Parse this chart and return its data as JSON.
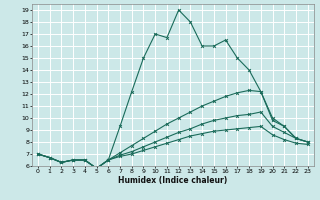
{
  "xlabel": "Humidex (Indice chaleur)",
  "bg_color": "#cce8e8",
  "grid_color": "#ffffff",
  "line_color": "#1a6b5a",
  "xlim": [
    -0.5,
    23.5
  ],
  "ylim": [
    6,
    19.5
  ],
  "xticks": [
    0,
    1,
    2,
    3,
    4,
    5,
    6,
    7,
    8,
    9,
    10,
    11,
    12,
    13,
    14,
    15,
    16,
    17,
    18,
    19,
    20,
    21,
    22,
    23
  ],
  "yticks": [
    6,
    7,
    8,
    9,
    10,
    11,
    12,
    13,
    14,
    15,
    16,
    17,
    18,
    19
  ],
  "line1_x": [
    0,
    1,
    2,
    3,
    4,
    5,
    6,
    7,
    8,
    9,
    10,
    11,
    12,
    13,
    14,
    15,
    16,
    17,
    18,
    19,
    20,
    21,
    22,
    23
  ],
  "line1_y": [
    7.0,
    6.7,
    6.3,
    6.5,
    6.5,
    5.8,
    6.5,
    9.3,
    12.2,
    15.0,
    17.0,
    16.7,
    19.0,
    18.0,
    16.0,
    16.0,
    16.5,
    15.0,
    14.0,
    12.2,
    10.0,
    9.3,
    8.3,
    8.0
  ],
  "line2_x": [
    0,
    1,
    2,
    3,
    4,
    5,
    6,
    7,
    8,
    9,
    10,
    11,
    12,
    13,
    14,
    15,
    16,
    17,
    18,
    19,
    20,
    21,
    22,
    23
  ],
  "line2_y": [
    7.0,
    6.7,
    6.3,
    6.5,
    6.5,
    5.8,
    6.5,
    7.1,
    7.7,
    8.3,
    8.9,
    9.5,
    10.0,
    10.5,
    11.0,
    11.4,
    11.8,
    12.1,
    12.3,
    12.2,
    9.8,
    9.3,
    8.3,
    8.0
  ],
  "line3_x": [
    0,
    1,
    2,
    3,
    4,
    5,
    6,
    7,
    8,
    9,
    10,
    11,
    12,
    13,
    14,
    15,
    16,
    17,
    18,
    19,
    20,
    21,
    22,
    23
  ],
  "line3_y": [
    7.0,
    6.7,
    6.3,
    6.5,
    6.5,
    5.8,
    6.5,
    6.9,
    7.2,
    7.6,
    8.0,
    8.4,
    8.8,
    9.1,
    9.5,
    9.8,
    10.0,
    10.2,
    10.3,
    10.5,
    9.3,
    8.8,
    8.3,
    8.0
  ],
  "line4_x": [
    0,
    1,
    2,
    3,
    4,
    5,
    6,
    7,
    8,
    9,
    10,
    11,
    12,
    13,
    14,
    15,
    16,
    17,
    18,
    19,
    20,
    21,
    22,
    23
  ],
  "line4_y": [
    7.0,
    6.7,
    6.3,
    6.5,
    6.5,
    5.8,
    6.5,
    6.8,
    7.0,
    7.3,
    7.6,
    7.9,
    8.2,
    8.5,
    8.7,
    8.9,
    9.0,
    9.1,
    9.2,
    9.3,
    8.6,
    8.2,
    7.9,
    7.8
  ]
}
